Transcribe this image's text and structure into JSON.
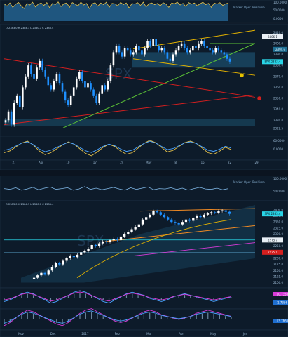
{
  "chart_data": [
    {
      "type": "area",
      "panel": "top-indicator",
      "legend": "Market Oper. Realtime",
      "yticks": [
        "100.0000",
        "50.0000",
        "0.0000"
      ],
      "ylim": [
        0,
        100
      ],
      "values": [
        88,
        76,
        92,
        70,
        85,
        95,
        78,
        64,
        90,
        82,
        96,
        72,
        86,
        92,
        80,
        94,
        68,
        90,
        84,
        97,
        74,
        88,
        92,
        70,
        94,
        86,
        78,
        96,
        82,
        90,
        64,
        88,
        94,
        76,
        92,
        84,
        96,
        70,
        90,
        88,
        78,
        95,
        84,
        92,
        66,
        90,
        86,
        94,
        80,
        96,
        72,
        88,
        92,
        84,
        90,
        78,
        94,
        86,
        70,
        92,
        88,
        96,
        82,
        90,
        74,
        94,
        86,
        92,
        78,
        88,
        96,
        84,
        90,
        70,
        92,
        86,
        94,
        80,
        88,
        92
      ]
    },
    {
      "type": "line",
      "panel": "price-upper",
      "header": "O 2383.0 H 2384.3 L 2380.7 C 2383.4",
      "watermark": "SPX",
      "price_tags": [
        {
          "label": "SPX",
          "value": "2383.4"
        },
        {
          "label": "",
          "value": "2406.1"
        }
      ],
      "yticks": [
        "2410.0",
        "2400.0",
        "2390.0",
        "2380.0",
        "2370.0",
        "2360.0",
        "2350.0",
        "2340.0",
        "2330.0",
        "2322.5"
      ],
      "ylim": [
        2318,
        2414
      ],
      "xticks": [
        "27",
        "Apr",
        "10",
        "17",
        "24",
        "May",
        "8",
        "15",
        "22",
        "29"
      ],
      "close": [
        2330,
        2338,
        2326,
        2346,
        2352,
        2342,
        2360,
        2370,
        2380,
        2372,
        2368,
        2378,
        2384,
        2376,
        2370,
        2362,
        2358,
        2366,
        2372,
        2364,
        2356,
        2348,
        2344,
        2352,
        2360,
        2368,
        2374,
        2366,
        2360,
        2364,
        2358,
        2352,
        2346,
        2354,
        2362,
        2358,
        2366,
        2380,
        2392,
        2398,
        2392,
        2388,
        2396,
        2394,
        2390,
        2392,
        2398,
        2394,
        2390,
        2396,
        2402,
        2398,
        2404,
        2398,
        2394,
        2396,
        2392,
        2386,
        2384,
        2390,
        2394,
        2398,
        2400,
        2396,
        2392,
        2394,
        2398,
        2396,
        2400,
        2402,
        2398,
        2396,
        2394,
        2392,
        2396,
        2394,
        2392,
        2390,
        2386,
        2383.4
      ],
      "zones": [
        {
          "label": "2394.6",
          "value": 2394.6
        }
      ]
    },
    {
      "type": "line",
      "panel": "oscillator-upper",
      "yticks": [
        "60.0000",
        "0.0000"
      ],
      "values": [
        -10,
        -5,
        5,
        15,
        20,
        10,
        -5,
        -15,
        -10,
        0,
        10,
        18,
        12,
        0,
        -12,
        -18,
        -8,
        4,
        12,
        6,
        -6,
        -14,
        -10,
        2,
        14,
        22,
        16,
        4,
        -8,
        -4,
        6,
        16,
        20,
        14,
        2,
        -10,
        -14,
        -6,
        4,
        -2
      ]
    },
    {
      "type": "line",
      "panel": "middle-indicator",
      "legend": "Market Oper. Realtime",
      "yticks": [
        "100.0000",
        "50.0000"
      ],
      "values": [
        74,
        72,
        76,
        70,
        73,
        77,
        71,
        75,
        78,
        72,
        74,
        76,
        70,
        73,
        79,
        72,
        75,
        71,
        74,
        77,
        73,
        70,
        76,
        72,
        75,
        78,
        71,
        74,
        73,
        76,
        72,
        75,
        70,
        74,
        77,
        73,
        72,
        75,
        71,
        74
      ]
    },
    {
      "type": "line",
      "panel": "price-lower",
      "header": "O 2383.0 H 2384.3 L 2380.7 C 2383.4",
      "watermark": "SPX",
      "price_tags": [
        {
          "label": "SPX",
          "value": "2383.4"
        },
        {
          "label": "",
          "value": "2275.7"
        },
        {
          "label": "",
          "value": "2225.1"
        }
      ],
      "yticks": [
        "2400.0",
        "2375.0",
        "2350.0",
        "2325.0",
        "2300.0",
        "2275.0",
        "2250.0",
        "2225.0",
        "2200.0",
        "2175.0",
        "2150.0",
        "2125.0",
        "2100.0"
      ],
      "ylim": [
        2090,
        2420
      ],
      "xticks": [
        "Nov",
        "Dec",
        "2017",
        "Feb",
        "Mar",
        "Apr",
        "May",
        "Jun"
      ],
      "close": [
        2120,
        2130,
        2140,
        2135,
        2150,
        2165,
        2180,
        2175,
        2190,
        2200,
        2210,
        2205,
        2215,
        2225,
        2230,
        2240,
        2255,
        2250,
        2262,
        2270,
        2268,
        2275,
        2280,
        2275,
        2290,
        2300,
        2310,
        2320,
        2330,
        2340,
        2360,
        2370,
        2380,
        2395,
        2390,
        2380,
        2370,
        2360,
        2350,
        2345,
        2340,
        2350,
        2360,
        2355,
        2365,
        2375,
        2370,
        2380,
        2385,
        2390,
        2388,
        2395,
        2398,
        2392,
        2383.4
      ]
    },
    {
      "type": "line",
      "panel": "oscillator-lower-1",
      "yticks": [
        "10.7356",
        "1.7356"
      ],
      "values": [
        -4,
        -2,
        2,
        6,
        8,
        6,
        2,
        -2,
        -6,
        -4,
        0,
        4,
        8,
        10,
        8,
        4,
        0,
        -4,
        -6,
        -2,
        2,
        6,
        8,
        6,
        4,
        0,
        -2,
        -4,
        -2,
        2,
        4,
        6,
        4,
        2,
        0,
        -2,
        -4,
        -2,
        0,
        2
      ]
    },
    {
      "type": "line",
      "panel": "oscillator-lower-2",
      "yticks": [
        "13.7865"
      ],
      "values": [
        -8,
        -4,
        2,
        8,
        12,
        10,
        6,
        2,
        -2,
        -6,
        -8,
        -4,
        2,
        8,
        12,
        14,
        10,
        6,
        2,
        -2,
        -4,
        -2,
        2,
        6,
        10,
        12,
        10,
        6,
        4,
        2,
        0,
        2,
        4,
        8,
        10,
        12,
        10,
        8,
        6,
        4
      ]
    }
  ],
  "colors": {
    "background": "#0b1420",
    "panel": "#0d1b2a",
    "up_candle": "#ffffff",
    "down_candle": "#1e90ff",
    "yellow_line": "#e6b400",
    "green_line": "#5bc236",
    "red_line": "#d41f1f",
    "orange_line": "#f08a24",
    "cyan_tag": "#29d6e8",
    "magenta": "#d83bd8"
  }
}
